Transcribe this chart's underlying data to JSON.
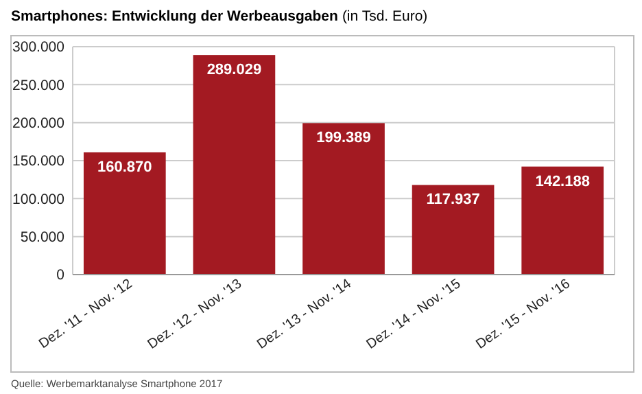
{
  "chart_data": {
    "type": "bar",
    "title": "Smartphones: Entwicklung der Werbeausgaben",
    "subtitle": "(in Tsd. Euro)",
    "categories": [
      "Dez. '11 - Nov. '12",
      "Dez. '12 - Nov. '13",
      "Dez. '13 - Nov. '14",
      "Dez. '14 - Nov. '15",
      "Dez. '15 - Nov. '16"
    ],
    "values": [
      160870,
      289029,
      199389,
      117937,
      142188
    ],
    "value_labels": [
      "160.870",
      "289.029",
      "199.389",
      "117.937",
      "142.188"
    ],
    "color": "#a31a22",
    "ylim": [
      0,
      300000
    ],
    "yticks": [
      {
        "value": 0,
        "label": "0"
      },
      {
        "value": 50000,
        "label": "50.000"
      },
      {
        "value": 100000,
        "label": "100.000"
      },
      {
        "value": 150000,
        "label": "150.000"
      },
      {
        "value": 200000,
        "label": "200.000"
      },
      {
        "value": 250000,
        "label": "250.000"
      },
      {
        "value": 300000,
        "label": "300.000"
      }
    ],
    "grid": "y",
    "annotations": [
      "Quelle: Werbemarktanalyse Smartphone 2017"
    ]
  }
}
